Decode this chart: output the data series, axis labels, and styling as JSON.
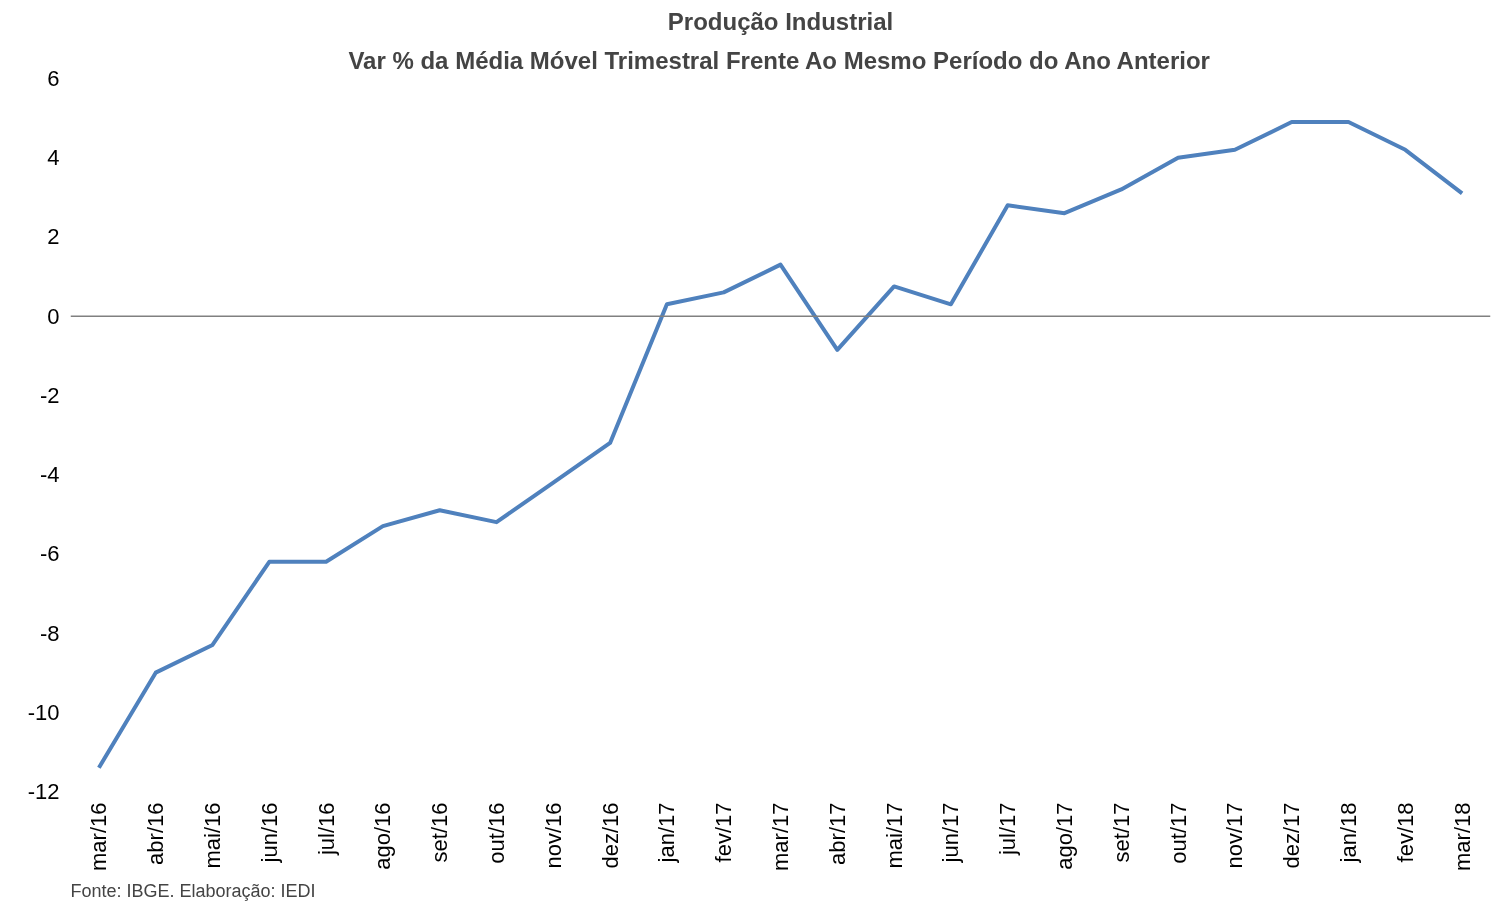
{
  "chart_data": {
    "type": "line",
    "title": "Produção Industrial",
    "subtitle": "Var % da Média Móvel Trimestral Frente Ao Mesmo Período do Ano Anterior",
    "categories": [
      "mar/16",
      "abr/16",
      "mai/16",
      "jun/16",
      "jul/16",
      "ago/16",
      "set/16",
      "out/16",
      "nov/16",
      "dez/16",
      "jan/17",
      "fev/17",
      "mar/17",
      "abr/17",
      "mai/17",
      "jun/17",
      "jul/17",
      "ago/17",
      "set/17",
      "out/17",
      "nov/17",
      "dez/17",
      "jan/18",
      "fev/18",
      "mar/18"
    ],
    "series": [
      {
        "color": "#4f81bd",
        "values": [
          -11.4,
          -9.0,
          -8.3,
          -6.2,
          -6.2,
          -5.3,
          -4.9,
          -5.2,
          -4.2,
          -3.2,
          0.3,
          0.6,
          1.3,
          -0.85,
          0.75,
          0.3,
          2.8,
          2.6,
          3.2,
          4.0,
          4.2,
          4.9,
          4.9,
          4.2,
          3.1
        ]
      }
    ],
    "ylim": [
      -12,
      6
    ],
    "yticks": [
      -12,
      -10,
      -8,
      -6,
      -4,
      -2,
      0,
      2,
      4,
      6
    ],
    "ref_lines": [
      {
        "axis": "y",
        "value": 0,
        "color": "#808080"
      }
    ],
    "marker": "none",
    "line_style": "solid",
    "annotations": [
      "Fonte: IBGE. Elaboração: IEDI"
    ]
  }
}
